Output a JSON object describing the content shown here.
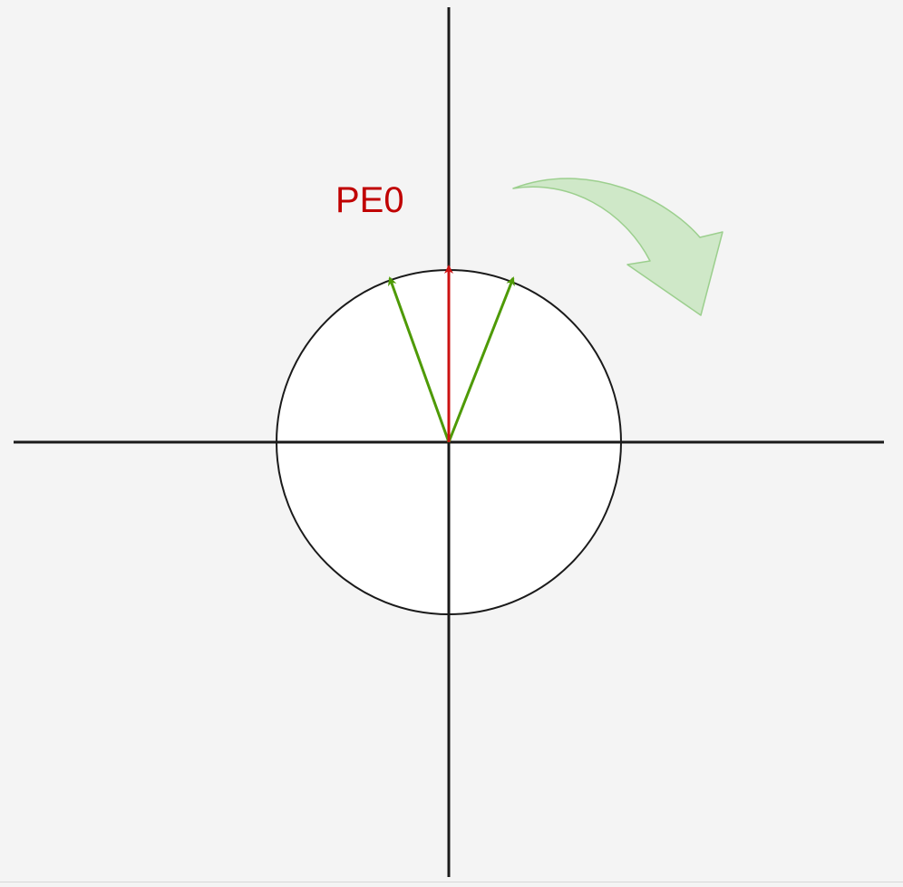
{
  "diagram": {
    "label": "PE0",
    "colors": {
      "background": "#f4f4f4",
      "axis": "#1a1a1a",
      "circle_fill": "#ffffff",
      "circle_stroke": "#1a1a1a",
      "reference_vector": "#cc1111",
      "side_vectors": "#4e9a06",
      "rotation_arrow_fill": "#cfe8c8",
      "rotation_arrow_stroke": "#9ccf8e",
      "label": "#c00000"
    },
    "vectors": [
      {
        "name": "left-green-vector",
        "color_key": "side_vectors"
      },
      {
        "name": "center-red-vector",
        "color_key": "reference_vector"
      },
      {
        "name": "right-green-vector",
        "color_key": "side_vectors"
      }
    ],
    "rotation_direction": "clockwise"
  }
}
